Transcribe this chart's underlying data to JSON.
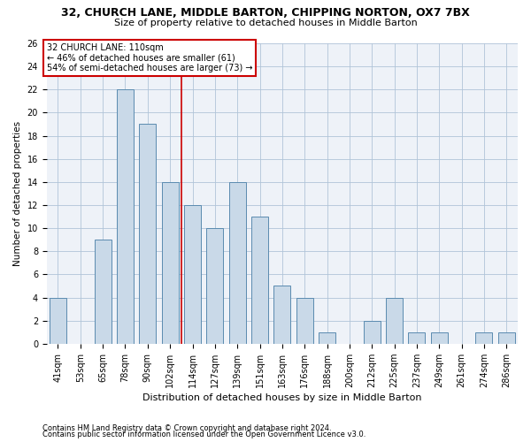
{
  "title1": "32, CHURCH LANE, MIDDLE BARTON, CHIPPING NORTON, OX7 7BX",
  "title2": "Size of property relative to detached houses in Middle Barton",
  "xlabel": "Distribution of detached houses by size in Middle Barton",
  "ylabel": "Number of detached properties",
  "footnote1": "Contains HM Land Registry data © Crown copyright and database right 2024.",
  "footnote2": "Contains public sector information licensed under the Open Government Licence v3.0.",
  "categories": [
    "41sqm",
    "53sqm",
    "65sqm",
    "78sqm",
    "90sqm",
    "102sqm",
    "114sqm",
    "127sqm",
    "139sqm",
    "151sqm",
    "163sqm",
    "176sqm",
    "188sqm",
    "200sqm",
    "212sqm",
    "225sqm",
    "237sqm",
    "249sqm",
    "261sqm",
    "274sqm",
    "286sqm"
  ],
  "values": [
    4,
    0,
    9,
    22,
    19,
    14,
    12,
    10,
    14,
    11,
    5,
    4,
    1,
    0,
    2,
    4,
    1,
    1,
    0,
    1,
    1
  ],
  "bar_color": "#c9d9e8",
  "bar_edge_color": "#5a8bb0",
  "grid_color": "#b0c4d8",
  "bg_color": "#eef2f8",
  "annotation_box_color": "#cc0000",
  "ref_line_color": "#cc0000",
  "ref_line_x": 5.5,
  "ylim": [
    0,
    26
  ],
  "yticks": [
    0,
    2,
    4,
    6,
    8,
    10,
    12,
    14,
    16,
    18,
    20,
    22,
    24,
    26
  ],
  "annotation_line1": "32 CHURCH LANE: 110sqm",
  "annotation_line2": "← 46% of detached houses are smaller (61)",
  "annotation_line3": "54% of semi-detached houses are larger (73) →",
  "title1_fontsize": 9.0,
  "title2_fontsize": 8.0,
  "xlabel_fontsize": 8.0,
  "ylabel_fontsize": 7.5,
  "tick_fontsize": 7.0,
  "annot_fontsize": 7.0,
  "footnote_fontsize": 6.0
}
